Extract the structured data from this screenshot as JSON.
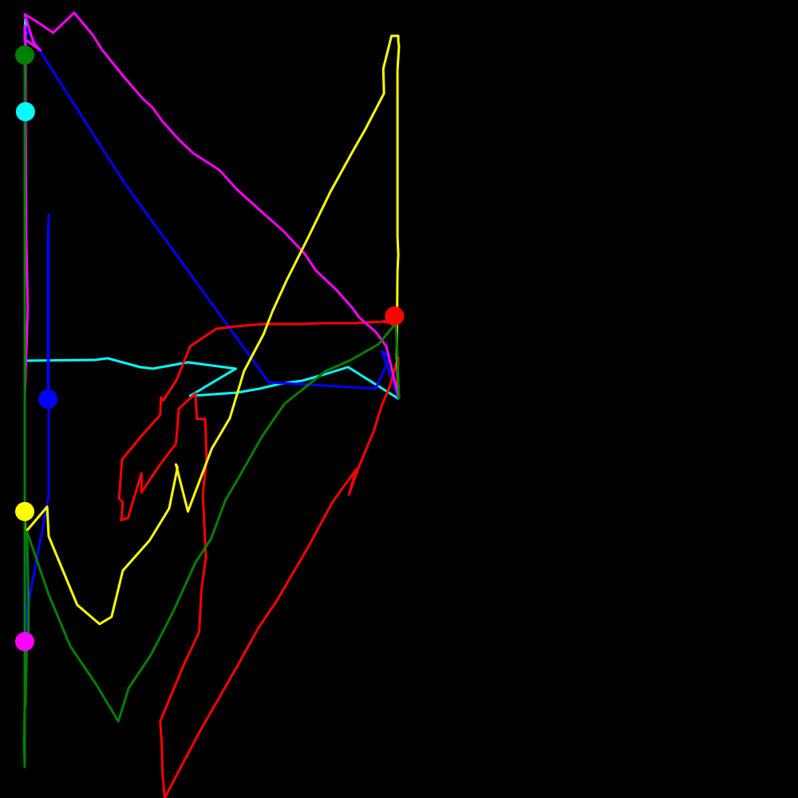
{
  "chart_data": {
    "type": "line",
    "title": "",
    "xlabel": "",
    "ylabel": "",
    "xlim": [
      -50,
      50
    ],
    "ylim": [
      -50,
      50
    ],
    "grid": false,
    "axes_visible": false,
    "legend": "none",
    "background": "#000000",
    "series": [
      {
        "color": "#00ffff",
        "end_marker": true,
        "points": [
          [
            0.0,
            0.0
          ],
          [
            -6.8,
            4.0
          ],
          [
            -9.9,
            3.1
          ],
          [
            -12.9,
            2.3
          ],
          [
            -15.9,
            1.9
          ],
          [
            -18.6,
            1.3
          ],
          [
            -21.6,
            0.8
          ],
          [
            -24.7,
            0.6
          ],
          [
            -27.9,
            0.4
          ],
          [
            -21.8,
            3.8
          ],
          [
            -28.2,
            4.6
          ],
          [
            -32.9,
            3.8
          ],
          [
            -34.6,
            4.0
          ],
          [
            -38.9,
            5.1
          ],
          [
            -40.6,
            4.9
          ],
          [
            -50.0,
            4.8
          ],
          [
            -50.0,
            46.2
          ],
          [
            -49.9,
            47.6
          ],
          [
            -49.9,
            39.2
          ],
          [
            -49.9,
            36.0
          ]
        ]
      },
      {
        "color": "#0000ff",
        "end_marker": true,
        "points": [
          [
            0.0,
            0.0
          ],
          [
            -2.3,
            6.0
          ],
          [
            -1.3,
            5.1
          ],
          [
            -3.1,
            1.3
          ],
          [
            -17.4,
            2.1
          ],
          [
            -36.7,
            27.1
          ],
          [
            -50.0,
            46.6
          ],
          [
            -50.0,
            16.6
          ],
          [
            -50.0,
            2.5
          ],
          [
            -50.0,
            -11.4
          ],
          [
            -49.9,
            -20.6
          ],
          [
            -49.9,
            -25.3
          ],
          [
            -49.8,
            -27.0
          ],
          [
            -49.8,
            -29.2
          ],
          [
            -49.6,
            -29.0
          ],
          [
            -50.0,
            -29.1
          ],
          [
            -49.9,
            -29.1
          ],
          [
            -50.0,
            -29.0
          ],
          [
            -49.9,
            -28.8
          ],
          [
            -49.9,
            -28.4
          ],
          [
            -50.0,
            -28.1
          ],
          [
            -46.8,
            -12.1
          ],
          [
            -46.8,
            12.0
          ],
          [
            -46.8,
            21.2
          ],
          [
            -46.8,
            23.1
          ],
          [
            -46.9,
            20.0
          ],
          [
            -46.9,
            2.1
          ],
          [
            -46.9,
            0.3
          ],
          [
            -46.9,
            0.0
          ]
        ]
      },
      {
        "color": "#ff0000",
        "end_marker": true,
        "points": [
          [
            0.0,
            0.0
          ],
          [
            -0.2,
            2.2
          ],
          [
            -0.1,
            5.2
          ],
          [
            -1.3,
            1.4
          ],
          [
            -2.3,
            -0.8
          ],
          [
            -3.4,
            -4.1
          ],
          [
            -5.4,
            -8.6
          ],
          [
            -6.7,
            -12.0
          ],
          [
            -5.7,
            -8.8
          ],
          [
            -7.8,
            -11.5
          ],
          [
            -9.0,
            -13.1
          ],
          [
            -12.1,
            -18.5
          ],
          [
            -14.1,
            -21.7
          ],
          [
            -16.2,
            -25.1
          ],
          [
            -18.8,
            -28.7
          ],
          [
            -21.5,
            -33.3
          ],
          [
            -23.7,
            -36.9
          ],
          [
            -26.4,
            -41.3
          ],
          [
            -28.8,
            -45.5
          ],
          [
            -31.3,
            -50.0
          ],
          [
            -31.6,
            -46.8
          ],
          [
            -31.7,
            -43.3
          ],
          [
            -31.9,
            -40.4
          ],
          [
            -28.8,
            -33.4
          ],
          [
            -26.7,
            -29.2
          ],
          [
            -26.4,
            -23.9
          ],
          [
            -25.8,
            -19.9
          ],
          [
            -26.2,
            -11.9
          ],
          [
            -25.7,
            -7.5
          ],
          [
            -25.9,
            -2.5
          ],
          [
            -27.0,
            -2.5
          ],
          [
            -27.2,
            0.7
          ],
          [
            -29.4,
            -1.2
          ],
          [
            -29.8,
            -5.6
          ],
          [
            -32.0,
            -8.3
          ],
          [
            -34.4,
            -11.7
          ],
          [
            -34.4,
            -9.3
          ],
          [
            -36.2,
            -14.9
          ],
          [
            -37.1,
            -15.2
          ],
          [
            -36.9,
            -12.9
          ],
          [
            -37.4,
            -12.5
          ],
          [
            -37.0,
            -7.6
          ],
          [
            -34.3,
            -4.5
          ],
          [
            -31.9,
            -2.0
          ],
          [
            -31.8,
            0.2
          ],
          [
            -31.5,
            -0.2
          ],
          [
            -29.7,
            2.4
          ],
          [
            -27.9,
            6.6
          ],
          [
            -24.4,
            8.8
          ],
          [
            -21.8,
            9.1
          ],
          [
            -18.0,
            9.4
          ],
          [
            -13.0,
            9.4
          ],
          [
            -10.3,
            9.5
          ],
          [
            -6.0,
            9.5
          ],
          [
            -4.2,
            9.6
          ],
          [
            -2.0,
            9.7
          ],
          [
            -1.1,
            9.5
          ],
          [
            -0.6,
            9.5
          ],
          [
            -1.7,
            9.6
          ],
          [
            -2.0,
            9.8
          ],
          [
            -1.5,
            9.8
          ],
          [
            -1.2,
            9.8
          ],
          [
            -0.9,
            9.3
          ],
          [
            -0.6,
            9.8
          ],
          [
            -0.6,
            10.4
          ]
        ]
      },
      {
        "color": "#ff00ff",
        "end_marker": true,
        "points": [
          [
            0.0,
            0.0
          ],
          [
            -1.7,
            6.6
          ],
          [
            -3.1,
            8.4
          ],
          [
            -5.3,
            10.2
          ],
          [
            -6.3,
            11.5
          ],
          [
            -8.4,
            13.7
          ],
          [
            -11.1,
            16.1
          ],
          [
            -12.6,
            18.2
          ],
          [
            -15.5,
            21.1
          ],
          [
            -18.4,
            23.5
          ],
          [
            -21.7,
            26.3
          ],
          [
            -24.0,
            28.7
          ],
          [
            -27.5,
            30.8
          ],
          [
            -29.3,
            32.4
          ],
          [
            -31.6,
            34.8
          ],
          [
            -33.0,
            36.6
          ],
          [
            -34.2,
            37.6
          ],
          [
            -36.7,
            40.3
          ],
          [
            -39.7,
            43.8
          ],
          [
            -40.9,
            45.6
          ],
          [
            -43.4,
            48.4
          ],
          [
            -46.2,
            45.9
          ],
          [
            -48.4,
            47.3
          ],
          [
            -50.0,
            48.2
          ],
          [
            -48.8,
            44.6
          ],
          [
            -47.9,
            43.7
          ],
          [
            -50.0,
            45.1
          ],
          [
            -50.0,
            46.8
          ],
          [
            -49.9,
            44.4
          ],
          [
            -49.9,
            40.0
          ],
          [
            -49.8,
            20.2
          ],
          [
            -49.6,
            11.6
          ],
          [
            -50.0,
            0.0
          ],
          [
            -50.0,
            -4.9
          ],
          [
            -50.0,
            -7.7
          ],
          [
            -50.0,
            -10.4
          ],
          [
            -50.0,
            -16.4
          ],
          [
            -50.0,
            -21.4
          ],
          [
            -50.0,
            -22.4
          ],
          [
            -50.0,
            -27.7
          ],
          [
            -50.0,
            -28.7
          ],
          [
            -50.0,
            -28.4
          ],
          [
            -50.0,
            -30.4
          ]
        ]
      },
      {
        "color": "#ffff00",
        "end_marker": true,
        "points": [
          [
            0.0,
            0.0
          ],
          [
            -0.3,
            5.4
          ],
          [
            -0.2,
            16.0
          ],
          [
            -0.1,
            18.1
          ],
          [
            -0.2,
            20.4
          ],
          [
            -0.2,
            41.2
          ],
          [
            0.0,
            44.2
          ],
          [
            -0.1,
            44.8
          ],
          [
            -0.1,
            45.5
          ],
          [
            -1.0,
            45.5
          ],
          [
            -2.1,
            41.4
          ],
          [
            -2.0,
            38.3
          ],
          [
            -4.5,
            33.8
          ],
          [
            -6.2,
            31.0
          ],
          [
            -9.2,
            25.9
          ],
          [
            -12.1,
            20.3
          ],
          [
            -15.0,
            14.9
          ],
          [
            -16.9,
            11.0
          ],
          [
            -18.1,
            8.1
          ],
          [
            -20.7,
            3.5
          ],
          [
            -22.6,
            -2.4
          ],
          [
            -25.0,
            -6.2
          ],
          [
            -28.2,
            -14.1
          ],
          [
            -29.8,
            -8.2
          ],
          [
            -29.6,
            -8.6
          ],
          [
            -30.7,
            -13.7
          ],
          [
            -33.3,
            -17.7
          ],
          [
            -36.9,
            -21.5
          ],
          [
            -38.4,
            -27.3
          ],
          [
            -40.0,
            -28.2
          ],
          [
            -43.0,
            -25.8
          ],
          [
            -46.8,
            -17.2
          ],
          [
            -47.0,
            -13.5
          ],
          [
            -49.9,
            -16.7
          ],
          [
            -49.9,
            -17.2
          ],
          [
            -50.0,
            -13.7
          ],
          [
            -50.0,
            -15.4
          ],
          [
            -50.0,
            -14.1
          ]
        ]
      },
      {
        "color": "#008000",
        "end_marker": true,
        "points": [
          [
            0.0,
            0.0
          ],
          [
            -0.4,
            9.5
          ],
          [
            -2.7,
            6.9
          ],
          [
            -6.4,
            4.9
          ],
          [
            -9.8,
            3.5
          ],
          [
            -15.3,
            -0.6
          ],
          [
            -18.3,
            -4.7
          ],
          [
            -21.5,
            -10.0
          ],
          [
            -23.2,
            -12.7
          ],
          [
            -25.1,
            -17.5
          ],
          [
            -27.2,
            -20.5
          ],
          [
            -30.1,
            -26.5
          ],
          [
            -33.1,
            -32.0
          ],
          [
            -36.1,
            -36.2
          ],
          [
            -37.5,
            -40.4
          ],
          [
            -40.5,
            -35.7
          ],
          [
            -43.9,
            -31.0
          ],
          [
            -46.8,
            -24.5
          ],
          [
            -49.7,
            -16.6
          ],
          [
            -49.5,
            -25.6
          ],
          [
            -49.5,
            -29.5
          ],
          [
            -49.9,
            -31.8
          ],
          [
            -49.9,
            -30.1
          ],
          [
            -49.7,
            -30.2
          ],
          [
            -49.9,
            -38.6
          ],
          [
            -50.0,
            -38.4
          ],
          [
            -50.1,
            -43.1
          ],
          [
            -50.0,
            -46.1
          ],
          [
            -50.0,
            -32.7
          ],
          [
            -50.0,
            -18.4
          ],
          [
            -50.0,
            2.1
          ],
          [
            -50.0,
            26.7
          ],
          [
            -50.0,
            43.1
          ]
        ]
      }
    ]
  }
}
